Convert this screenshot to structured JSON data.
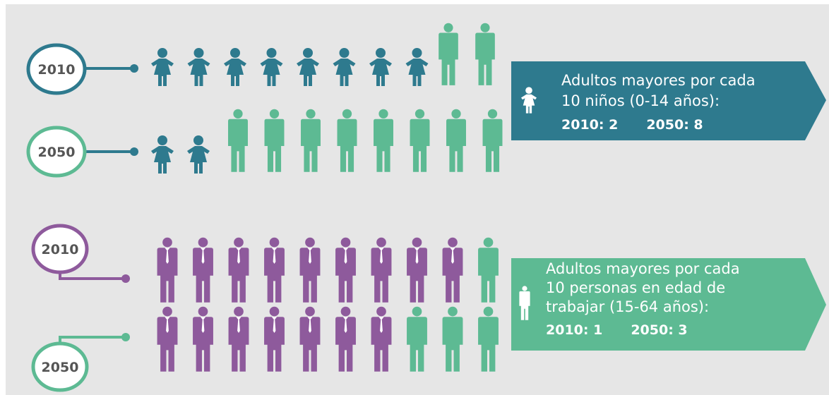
{
  "colors": {
    "background": "#e6e6e6",
    "child": "#2e7a8e",
    "elder": "#5dba93",
    "worker": "#8e5a9c",
    "banner_top": "#2e7a8e",
    "banner_bottom": "#5dba93"
  },
  "section_children": {
    "rows": [
      {
        "year_label": "2010",
        "children": 8,
        "elders": 2
      },
      {
        "year_label": "2050",
        "children": 2,
        "elders": 8
      }
    ],
    "info": {
      "icon": "child-icon",
      "line1": "Adultos mayores por cada",
      "line2": "10 niños (0-14 años):",
      "stat_2010": "2010: 2",
      "stat_2050": "2050: 8"
    }
  },
  "section_workers": {
    "rows": [
      {
        "year_label": "2010",
        "workers": 9,
        "elders": 1
      },
      {
        "year_label": "2050",
        "workers": 7,
        "elders": 3
      }
    ],
    "info": {
      "icon": "elder-person-icon",
      "line1": "Adultos mayores por cada",
      "line2": "10 personas en edad de",
      "line3": "trabajar (15-64 años):",
      "stat_2010": "2010: 1",
      "stat_2050": "2050: 3"
    }
  }
}
